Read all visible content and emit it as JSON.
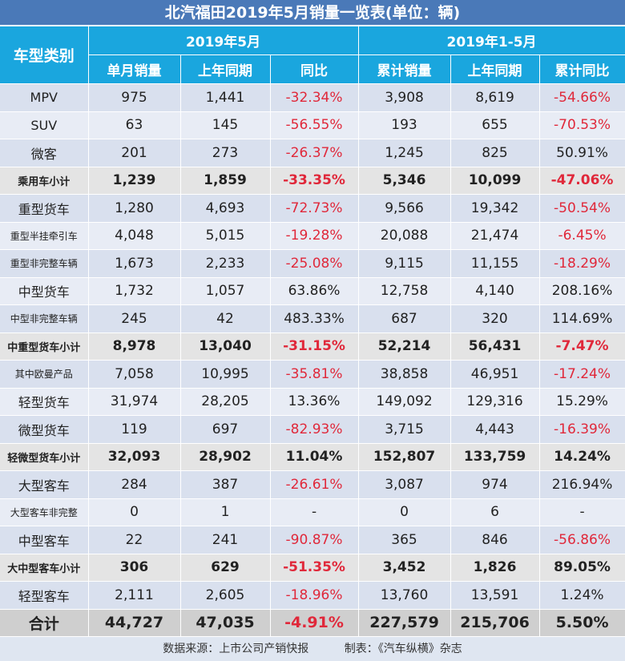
{
  "title": "北汽福田2019年5月销量一览表(单位：辆)",
  "header": {
    "category": "车型类别",
    "group1": "2019年5月",
    "group2": "2019年1-5月",
    "cols": [
      "单月销量",
      "上年同期",
      "同比",
      "累计销量",
      "上年同期",
      "累计同比"
    ]
  },
  "rows": [
    {
      "type": "odd",
      "name": "MPV",
      "v": [
        "975",
        "1,441",
        "-32.34%",
        "3,908",
        "8,619",
        "-54.66%"
      ]
    },
    {
      "type": "even",
      "name": "SUV",
      "v": [
        "63",
        "145",
        "-56.55%",
        "193",
        "655",
        "-70.53%"
      ]
    },
    {
      "type": "odd",
      "name": "微客",
      "v": [
        "201",
        "273",
        "-26.37%",
        "1,245",
        "825",
        "50.91%"
      ]
    },
    {
      "type": "sub",
      "name": "乘用车小计",
      "v": [
        "1,239",
        "1,859",
        "-33.35%",
        "5,346",
        "10,099",
        "-47.06%"
      ]
    },
    {
      "type": "odd",
      "name": "重型货车",
      "v": [
        "1,280",
        "4,693",
        "-72.73%",
        "9,566",
        "19,342",
        "-50.54%"
      ]
    },
    {
      "type": "even",
      "name": "重型半挂牵引车",
      "small": true,
      "v": [
        "4,048",
        "5,015",
        "-19.28%",
        "20,088",
        "21,474",
        "-6.45%"
      ]
    },
    {
      "type": "odd",
      "name": "重型非完整车辆",
      "small": true,
      "v": [
        "1,673",
        "2,233",
        "-25.08%",
        "9,115",
        "11,155",
        "-18.29%"
      ]
    },
    {
      "type": "even",
      "name": "中型货车",
      "v": [
        "1,732",
        "1,057",
        "63.86%",
        "12,758",
        "4,140",
        "208.16%"
      ]
    },
    {
      "type": "odd",
      "name": "中型非完整车辆",
      "small": true,
      "v": [
        "245",
        "42",
        "483.33%",
        "687",
        "320",
        "114.69%"
      ]
    },
    {
      "type": "sub",
      "name": "中重型货车小计",
      "v": [
        "8,978",
        "13,040",
        "-31.15%",
        "52,214",
        "56,431",
        "-7.47%"
      ]
    },
    {
      "type": "odd",
      "name": "其中欧曼产品",
      "small": true,
      "v": [
        "7,058",
        "10,995",
        "-35.81%",
        "38,858",
        "46,951",
        "-17.24%"
      ]
    },
    {
      "type": "even",
      "name": "轻型货车",
      "v": [
        "31,974",
        "28,205",
        "13.36%",
        "149,092",
        "129,316",
        "15.29%"
      ]
    },
    {
      "type": "odd",
      "name": "微型货车",
      "v": [
        "119",
        "697",
        "-82.93%",
        "3,715",
        "4,443",
        "-16.39%"
      ]
    },
    {
      "type": "sub",
      "name": "轻微型货车小计",
      "v": [
        "32,093",
        "28,902",
        "11.04%",
        "152,807",
        "133,759",
        "14.24%"
      ]
    },
    {
      "type": "odd",
      "name": "大型客车",
      "v": [
        "284",
        "387",
        "-26.61%",
        "3,087",
        "974",
        "216.94%"
      ]
    },
    {
      "type": "even",
      "name": "大型客车非完整",
      "small": true,
      "v": [
        "0",
        "1",
        "-",
        "0",
        "6",
        "-"
      ]
    },
    {
      "type": "odd",
      "name": "中型客车",
      "v": [
        "22",
        "241",
        "-90.87%",
        "365",
        "846",
        "-56.86%"
      ]
    },
    {
      "type": "sub",
      "name": "大中型客车小计",
      "v": [
        "306",
        "629",
        "-51.35%",
        "3,452",
        "1,826",
        "89.05%"
      ]
    },
    {
      "type": "odd",
      "name": "轻型客车",
      "v": [
        "2,111",
        "2,605",
        "-18.96%",
        "13,760",
        "13,591",
        "1.24%"
      ]
    },
    {
      "type": "total",
      "name": "合计",
      "v": [
        "44,727",
        "47,035",
        "-4.91%",
        "227,579",
        "215,706",
        "5.50%"
      ]
    }
  ],
  "footer": {
    "source": "数据来源：上市公司产销快报",
    "maker": "制表：《汽车纵横》杂志"
  }
}
